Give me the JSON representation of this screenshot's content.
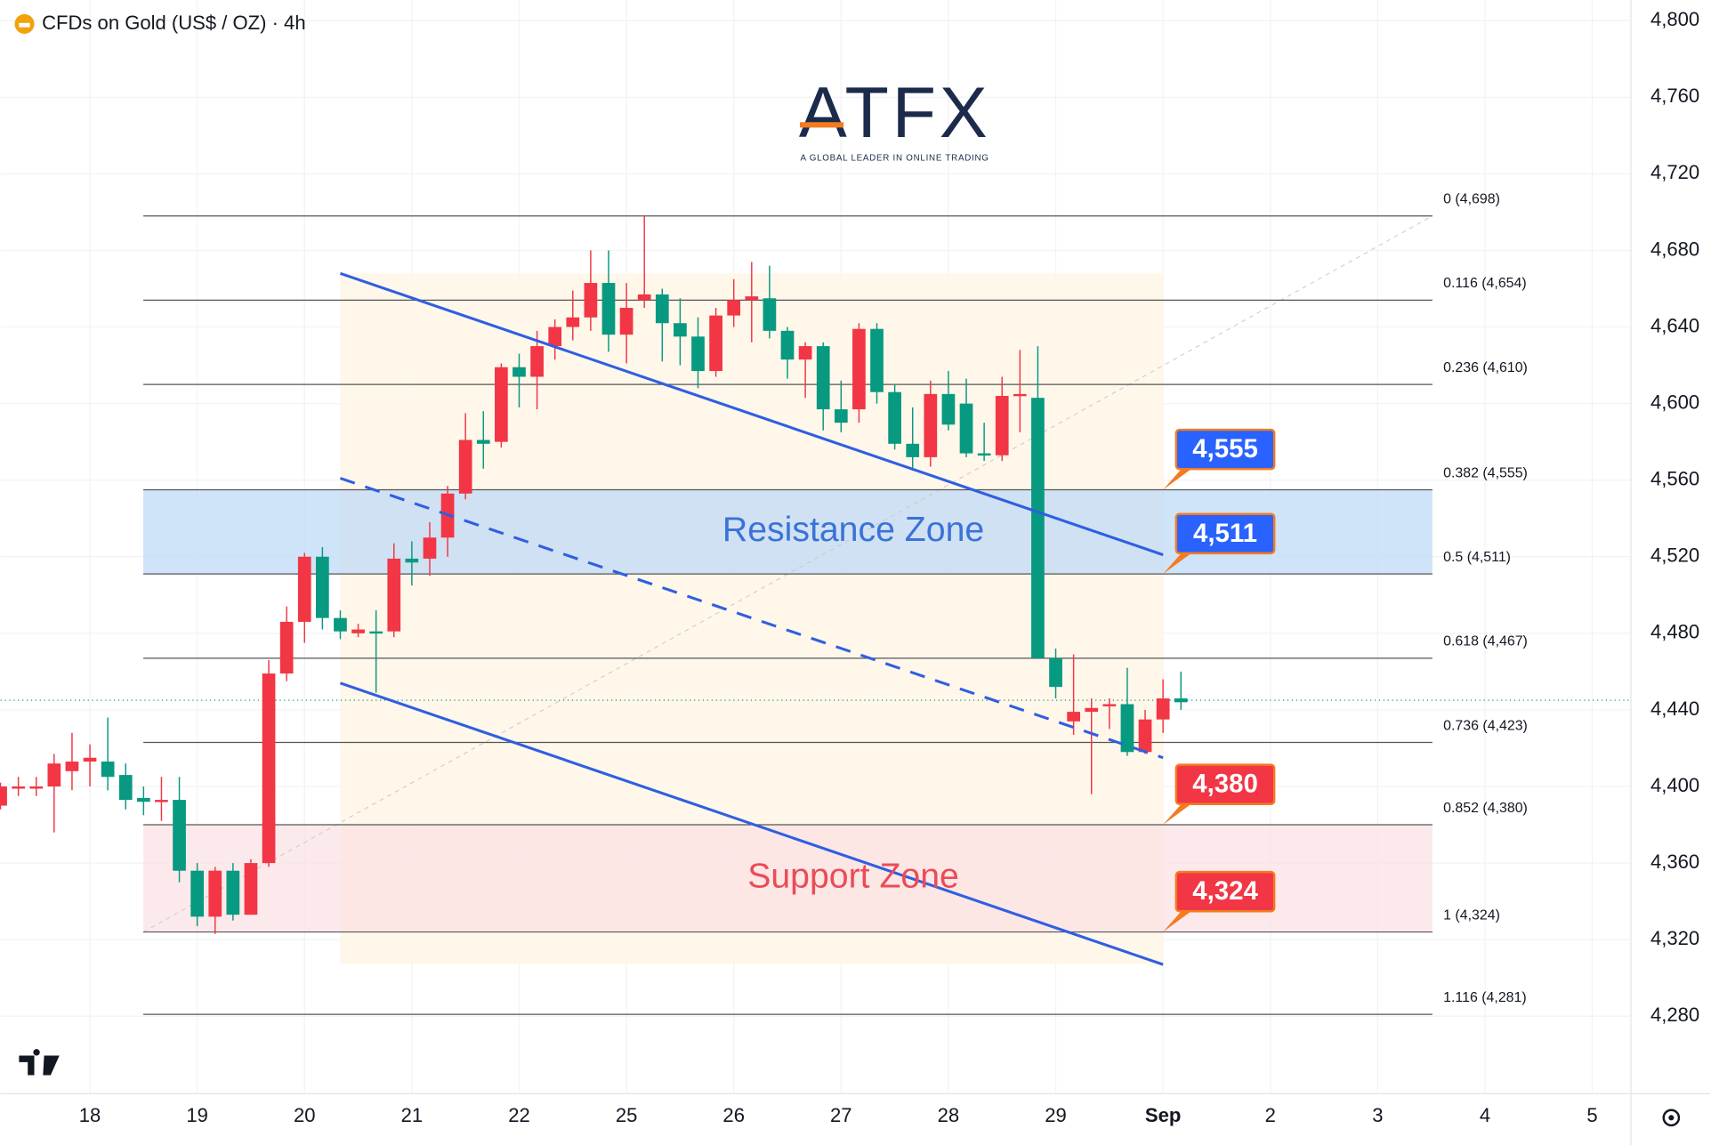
{
  "chart_data": {
    "type": "candlestick",
    "title": "CFDs on Gold (US$ / OZ) · 4h",
    "brand": "ATFX",
    "tagline": "A GLOBAL LEADER IN ONLINE TRADING",
    "up_color": "#f23645",
    "down_color": "#089981",
    "x": [
      -5,
      -4,
      -3,
      -2,
      -1,
      0,
      1,
      2,
      3,
      4,
      5,
      6,
      7,
      8,
      9,
      10,
      11,
      12,
      13,
      14,
      15,
      16,
      17,
      18,
      19,
      20,
      21,
      22,
      23,
      24,
      25,
      26,
      27,
      28,
      29,
      30,
      31,
      32,
      33,
      34,
      35,
      36,
      37,
      38,
      39,
      40,
      41,
      42,
      43,
      44,
      45,
      46,
      47,
      48,
      49,
      50,
      51,
      52,
      53,
      54,
      55,
      56,
      57,
      58,
      59,
      60,
      61
    ],
    "open": [
      4390,
      4399,
      4399,
      4400,
      4408,
      4413,
      4413,
      4406,
      4394,
      4392,
      4393,
      4356,
      4332,
      4356,
      4333,
      4360,
      4459,
      4486,
      4520,
      4488,
      4480,
      4481,
      4481,
      4519,
      4519,
      4530,
      4553,
      4581,
      4580,
      4619,
      4614,
      4630,
      4640,
      4645,
      4663,
      4636,
      4654,
      4657,
      4642,
      4635,
      4617,
      4646,
      4654,
      4655,
      4638,
      4623,
      4630,
      4597,
      4597,
      4639,
      4606,
      4579,
      4572,
      4605,
      4600,
      4574,
      4573,
      4604,
      4603,
      4467,
      4434,
      4439,
      4442,
      4443,
      4418,
      4435,
      4446
    ],
    "high": [
      4402,
      4405,
      4405,
      4417,
      4428,
      4422,
      4436,
      4412,
      4400,
      4405,
      4405,
      4360,
      4358,
      4360,
      4362,
      4466,
      4494,
      4522,
      4525,
      4492,
      4485,
      4492,
      4527,
      4528,
      4538,
      4557,
      4595,
      4596,
      4621,
      4626,
      4638,
      4644,
      4659,
      4680,
      4680,
      4663,
      4698,
      4660,
      4655,
      4645,
      4650,
      4665,
      4674,
      4672,
      4640,
      4632,
      4632,
      4612,
      4642,
      4642,
      4610,
      4598,
      4612,
      4617,
      4613,
      4590,
      4614,
      4628,
      4630,
      4472,
      4469,
      4446,
      4446,
      4462,
      4440,
      4456,
      4460
    ],
    "low": [
      4388,
      4395,
      4395,
      4376,
      4398,
      4400,
      4398,
      4388,
      4385,
      4382,
      4350,
      4327,
      4323,
      4330,
      4333,
      4358,
      4455,
      4475,
      4482,
      4477,
      4478,
      4449,
      4478,
      4505,
      4510,
      4520,
      4550,
      4566,
      4577,
      4598,
      4597,
      4623,
      4633,
      4638,
      4627,
      4621,
      4650,
      4622,
      4620,
      4608,
      4614,
      4640,
      4632,
      4634,
      4613,
      4603,
      4586,
      4585,
      4590,
      4600,
      4576,
      4565,
      4567,
      4586,
      4572,
      4570,
      4570,
      4585,
      4467,
      4446,
      4427,
      4396,
      4430,
      4416,
      4417,
      4428,
      4440
    ],
    "close": [
      4400,
      4400,
      4400,
      4412,
      4413,
      4415,
      4405,
      4393,
      4392,
      4393,
      4356,
      4332,
      4356,
      4333,
      4360,
      4459,
      4486,
      4520,
      4488,
      4481,
      4482,
      4480,
      4519,
      4517,
      4530,
      4553,
      4581,
      4579,
      4619,
      4614,
      4630,
      4640,
      4645,
      4663,
      4636,
      4650,
      4657,
      4642,
      4635,
      4617,
      4646,
      4654,
      4656,
      4638,
      4623,
      4630,
      4597,
      4590,
      4639,
      4606,
      4579,
      4572,
      4605,
      4589,
      4574,
      4573,
      4604,
      4605,
      4467,
      4452,
      4439,
      4441,
      4443,
      4418,
      4435,
      4446,
      4444
    ],
    "last_price": 4445,
    "xlim": [
      -5,
      86.16
    ],
    "xticks": [
      {
        "value": 0,
        "label": "18"
      },
      {
        "value": 6,
        "label": "19"
      },
      {
        "value": 12,
        "label": "20"
      },
      {
        "value": 18,
        "label": "21"
      },
      {
        "value": 24,
        "label": "22"
      },
      {
        "value": 30,
        "label": "25"
      },
      {
        "value": 36,
        "label": "26"
      },
      {
        "value": 42,
        "label": "27"
      },
      {
        "value": 48,
        "label": "28"
      },
      {
        "value": 54,
        "label": "29"
      },
      {
        "value": 60,
        "label": "Sep"
      },
      {
        "value": 66,
        "label": "2"
      },
      {
        "value": 72,
        "label": "3"
      },
      {
        "value": 78,
        "label": "4"
      },
      {
        "value": 84,
        "label": "5"
      }
    ],
    "ylim": [
      4239.5,
      4810.8
    ],
    "yticks": [
      {
        "value": 4280,
        "label": "4,280"
      },
      {
        "value": 4320,
        "label": "4,320"
      },
      {
        "value": 4360,
        "label": "4,360"
      },
      {
        "value": 4400,
        "label": "4,400"
      },
      {
        "value": 4440,
        "label": "4,440"
      },
      {
        "value": 4480,
        "label": "4,480"
      },
      {
        "value": 4520,
        "label": "4,520"
      },
      {
        "value": 4560,
        "label": "4,560"
      },
      {
        "value": 4600,
        "label": "4,600"
      },
      {
        "value": 4640,
        "label": "4,640"
      },
      {
        "value": 4680,
        "label": "4,680"
      },
      {
        "value": 4720,
        "label": "4,720"
      },
      {
        "value": 4760,
        "label": "4,760"
      },
      {
        "value": 4800,
        "label": "4,800"
      }
    ],
    "fib_levels": [
      {
        "value": 4698,
        "label": "0 (4,698)"
      },
      {
        "value": 4654,
        "label": "0.116 (4,654)"
      },
      {
        "value": 4610,
        "label": "0.236 (4,610)"
      },
      {
        "value": 4555,
        "label": "0.382 (4,555)"
      },
      {
        "value": 4511,
        "label": "0.5 (4,511)"
      },
      {
        "value": 4467,
        "label": "0.618 (4,467)"
      },
      {
        "value": 4423,
        "label": "0.736 (4,423)"
      },
      {
        "value": 4380,
        "label": "0.852 (4,380)"
      },
      {
        "value": 4324,
        "label": "1 (4,324)"
      },
      {
        "value": 4281,
        "label": "1.116 (4,281)"
      }
    ],
    "zones": [
      {
        "label": "Resistance Zone",
        "from": 4511,
        "to": 4555,
        "color": "#bbd7f7",
        "text_color": "#3a72d8"
      },
      {
        "label": "Support Zone",
        "from": 4324,
        "to": 4380,
        "color": "#fbe0e2",
        "text_color": "#ec4b57"
      }
    ],
    "trend_lines": [
      {
        "x": [
          14,
          60
        ],
        "y": [
          4668,
          4521
        ],
        "dashed": false
      },
      {
        "x": [
          14,
          60
        ],
        "y": [
          4561,
          4415
        ],
        "dashed": true
      },
      {
        "x": [
          14,
          60
        ],
        "y": [
          4454,
          4307
        ],
        "dashed": false
      }
    ],
    "callouts": [
      {
        "value": 4555,
        "label": "4,555",
        "color": "#2962ff"
      },
      {
        "value": 4511,
        "label": "4,511",
        "color": "#2962ff"
      },
      {
        "value": 4380,
        "label": "4,380",
        "color": "#f23645"
      },
      {
        "value": 4324,
        "label": "4,324",
        "color": "#f23645"
      }
    ]
  }
}
